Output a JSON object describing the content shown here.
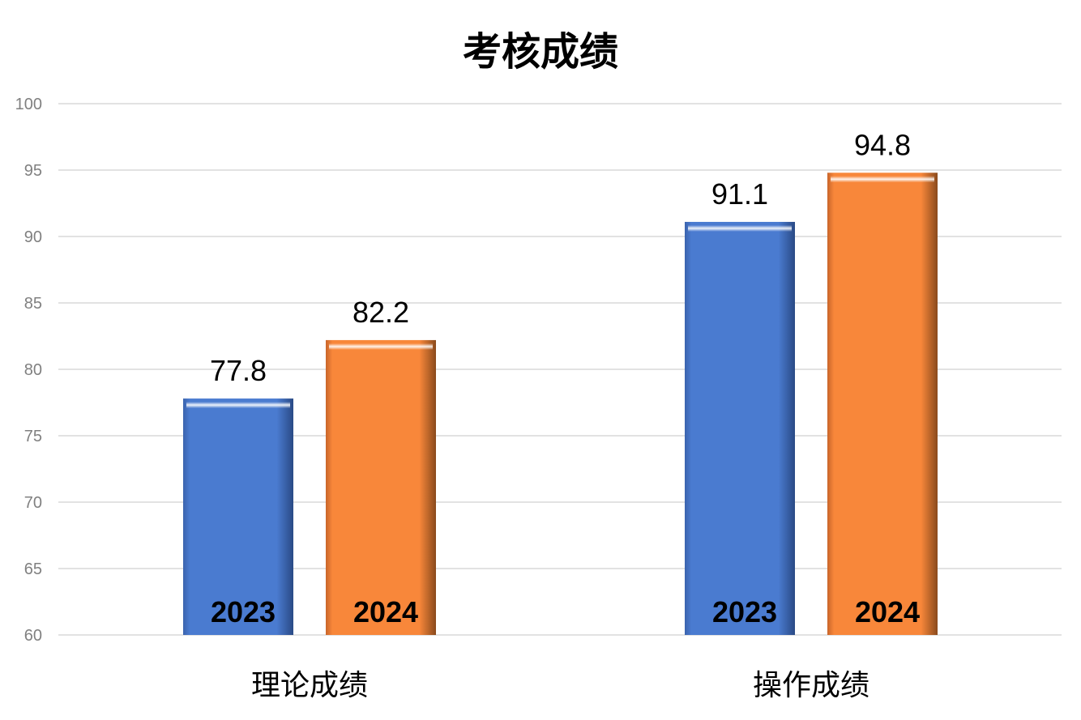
{
  "chart_data": {
    "type": "bar",
    "title": "考核成绩",
    "categories": [
      "理论成绩",
      "操作成绩"
    ],
    "series": [
      {
        "name": "2023",
        "values": [
          77.8,
          91.1
        ],
        "color": "#4a7bd0"
      },
      {
        "name": "2024",
        "values": [
          82.2,
          94.8
        ],
        "color": "#f8873a"
      }
    ],
    "ylim": [
      60,
      100
    ],
    "yticks": [
      60,
      65,
      70,
      75,
      80,
      85,
      90,
      95,
      100
    ],
    "grid": true,
    "legend": "none",
    "xlabel": "",
    "ylabel": ""
  }
}
